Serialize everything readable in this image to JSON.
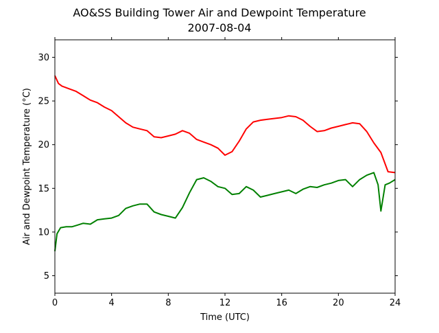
{
  "chart_data": {
    "type": "line",
    "title": "AO&SS Building Tower Air and Dewpoint Temperature",
    "subtitle": "2007-08-04",
    "xlabel": "Time (UTC)",
    "ylabel": "Air and Dewpoint Temperature (°C)",
    "xlim": [
      0,
      24
    ],
    "ylim": [
      3,
      32
    ],
    "xticks": [
      0,
      4,
      8,
      12,
      16,
      20,
      24
    ],
    "yticks": [
      5,
      10,
      15,
      20,
      25,
      30
    ],
    "grid": false,
    "legend": false,
    "series": [
      {
        "color": "#ff0000",
        "x": [
          0,
          0.25,
          0.5,
          1,
          1.5,
          2,
          2.5,
          3,
          3.5,
          4,
          4.5,
          5,
          5.5,
          6,
          6.5,
          7,
          7.5,
          8,
          8.5,
          9,
          9.5,
          10,
          10.5,
          11,
          11.5,
          12,
          12.5,
          13,
          13.5,
          14,
          14.5,
          15,
          15.5,
          16,
          16.5,
          17,
          17.5,
          18,
          18.5,
          19,
          19.5,
          20,
          20.5,
          21,
          21.5,
          22,
          22.5,
          23,
          23.5,
          24
        ],
        "y": [
          27.9,
          27.0,
          26.7,
          26.4,
          26.1,
          25.6,
          25.1,
          24.8,
          24.3,
          23.9,
          23.2,
          22.5,
          22.0,
          21.8,
          21.6,
          20.9,
          20.8,
          21.0,
          21.2,
          21.6,
          21.3,
          20.6,
          20.3,
          20.0,
          19.6,
          18.8,
          19.2,
          20.4,
          21.8,
          22.6,
          22.8,
          22.9,
          23.0,
          23.1,
          23.3,
          23.2,
          22.8,
          22.1,
          21.5,
          21.6,
          21.9,
          22.1,
          22.3,
          22.5,
          22.4,
          21.5,
          20.2,
          19.1,
          16.9,
          16.8
        ]
      },
      {
        "color": "#008000",
        "x": [
          0,
          0.15,
          0.4,
          0.8,
          1.2,
          1.6,
          2,
          2.5,
          3,
          3.5,
          4,
          4.5,
          5,
          5.5,
          6,
          6.5,
          7,
          7.5,
          8,
          8.5,
          9,
          9.5,
          10,
          10.5,
          11,
          11.5,
          12,
          12.5,
          13,
          13.5,
          14,
          14.5,
          15,
          15.5,
          16,
          16.5,
          17,
          17.5,
          18,
          18.5,
          19,
          19.5,
          20,
          20.5,
          21,
          21.5,
          22,
          22.5,
          22.8,
          23,
          23.3,
          23.6,
          24
        ],
        "y": [
          7.8,
          9.8,
          10.5,
          10.6,
          10.6,
          10.8,
          11.0,
          10.9,
          11.4,
          11.5,
          11.6,
          11.9,
          12.7,
          13.0,
          13.2,
          13.2,
          12.3,
          12.0,
          11.8,
          11.6,
          12.8,
          14.5,
          16.0,
          16.2,
          15.8,
          15.2,
          15.0,
          14.3,
          14.4,
          15.2,
          14.8,
          14.0,
          14.2,
          14.4,
          14.6,
          14.8,
          14.4,
          14.9,
          15.2,
          15.1,
          15.4,
          15.6,
          15.9,
          16.0,
          15.2,
          16.0,
          16.5,
          16.8,
          15.4,
          12.4,
          15.4,
          15.6,
          16.0
        ]
      }
    ]
  }
}
